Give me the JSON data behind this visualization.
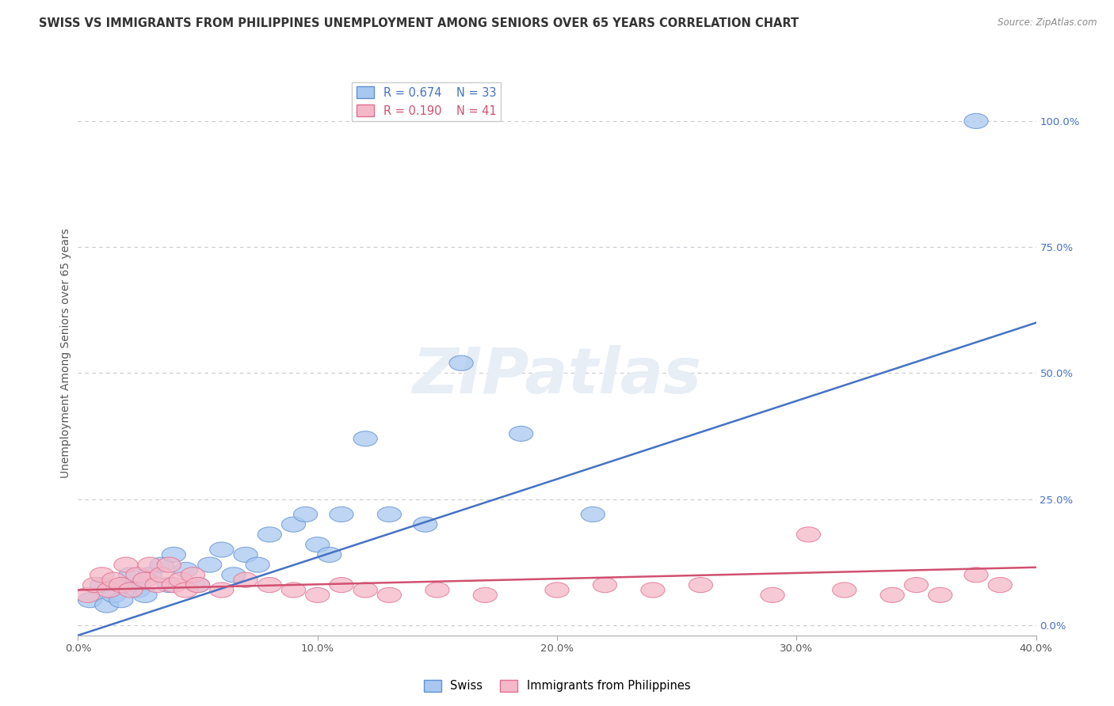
{
  "title": "SWISS VS IMMIGRANTS FROM PHILIPPINES UNEMPLOYMENT AMONG SENIORS OVER 65 YEARS CORRELATION CHART",
  "source": "Source: ZipAtlas.com",
  "ylabel": "Unemployment Among Seniors over 65 years",
  "xlim": [
    0.0,
    0.4
  ],
  "ylim": [
    -0.02,
    1.1
  ],
  "xticks": [
    0.0,
    0.1,
    0.2,
    0.3,
    0.4
  ],
  "xtick_labels": [
    "0.0%",
    "10.0%",
    "20.0%",
    "30.0%",
    "40.0%"
  ],
  "ytick_positions": [
    0.0,
    0.25,
    0.5,
    0.75,
    1.0
  ],
  "ytick_labels_right": [
    "0.0%",
    "25.0%",
    "50.0%",
    "75.0%",
    "100.0%"
  ],
  "legend_labels": [
    "Swiss",
    "Immigrants from Philippines"
  ],
  "swiss_color": "#A8C8F0",
  "philippines_color": "#F5B8C8",
  "swiss_edge_color": "#6090D0",
  "philippines_edge_color": "#E07090",
  "swiss_line_color": "#4472C4",
  "philippines_line_color": "#D05070",
  "R_swiss": 0.674,
  "N_swiss": 33,
  "R_philippines": 0.19,
  "N_philippines": 41,
  "swiss_x": [
    0.005,
    0.01,
    0.012,
    0.015,
    0.018,
    0.02,
    0.022,
    0.025,
    0.028,
    0.03,
    0.035,
    0.038,
    0.04,
    0.045,
    0.05,
    0.055,
    0.06,
    0.065,
    0.07,
    0.075,
    0.08,
    0.09,
    0.095,
    0.1,
    0.105,
    0.11,
    0.12,
    0.13,
    0.145,
    0.16,
    0.185,
    0.215,
    0.375
  ],
  "swiss_y": [
    0.05,
    0.08,
    0.04,
    0.06,
    0.05,
    0.08,
    0.1,
    0.07,
    0.06,
    0.1,
    0.12,
    0.08,
    0.14,
    0.11,
    0.08,
    0.12,
    0.15,
    0.1,
    0.14,
    0.12,
    0.18,
    0.2,
    0.22,
    0.16,
    0.14,
    0.22,
    0.37,
    0.22,
    0.2,
    0.52,
    0.38,
    0.22,
    1.0
  ],
  "philippines_x": [
    0.004,
    0.007,
    0.01,
    0.013,
    0.015,
    0.018,
    0.02,
    0.022,
    0.025,
    0.028,
    0.03,
    0.033,
    0.035,
    0.038,
    0.04,
    0.043,
    0.045,
    0.048,
    0.05,
    0.06,
    0.07,
    0.08,
    0.09,
    0.1,
    0.11,
    0.12,
    0.13,
    0.15,
    0.17,
    0.2,
    0.22,
    0.24,
    0.26,
    0.29,
    0.305,
    0.32,
    0.34,
    0.35,
    0.36,
    0.375,
    0.385
  ],
  "philippines_y": [
    0.06,
    0.08,
    0.1,
    0.07,
    0.09,
    0.08,
    0.12,
    0.07,
    0.1,
    0.09,
    0.12,
    0.08,
    0.1,
    0.12,
    0.08,
    0.09,
    0.07,
    0.1,
    0.08,
    0.07,
    0.09,
    0.08,
    0.07,
    0.06,
    0.08,
    0.07,
    0.06,
    0.07,
    0.06,
    0.07,
    0.08,
    0.07,
    0.08,
    0.06,
    0.18,
    0.07,
    0.06,
    0.08,
    0.06,
    0.1,
    0.08
  ],
  "swiss_regression": [
    -0.02,
    0.6
  ],
  "philippines_regression": [
    0.07,
    0.115
  ],
  "watermark": "ZIPatlas",
  "background_color": "#FFFFFF",
  "grid_color": "#C8C8D0",
  "title_fontsize": 10.5,
  "axis_label_fontsize": 10,
  "tick_fontsize": 9.5,
  "legend_fontsize": 10.5
}
